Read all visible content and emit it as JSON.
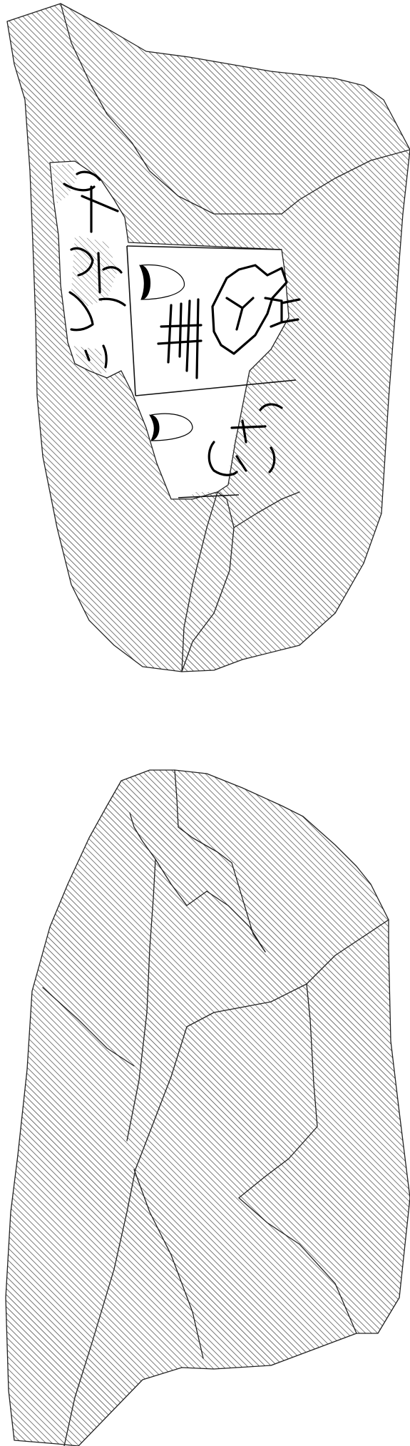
{
  "drawing": {
    "colors": {
      "background": "#ffffff",
      "outline": "#222222",
      "hatch": "#333333",
      "sign": "#000000"
    },
    "views": [
      {
        "id": "obverse",
        "has_inscribed_surface": true
      },
      {
        "id": "reverse",
        "has_inscribed_surface": false
      }
    ]
  }
}
